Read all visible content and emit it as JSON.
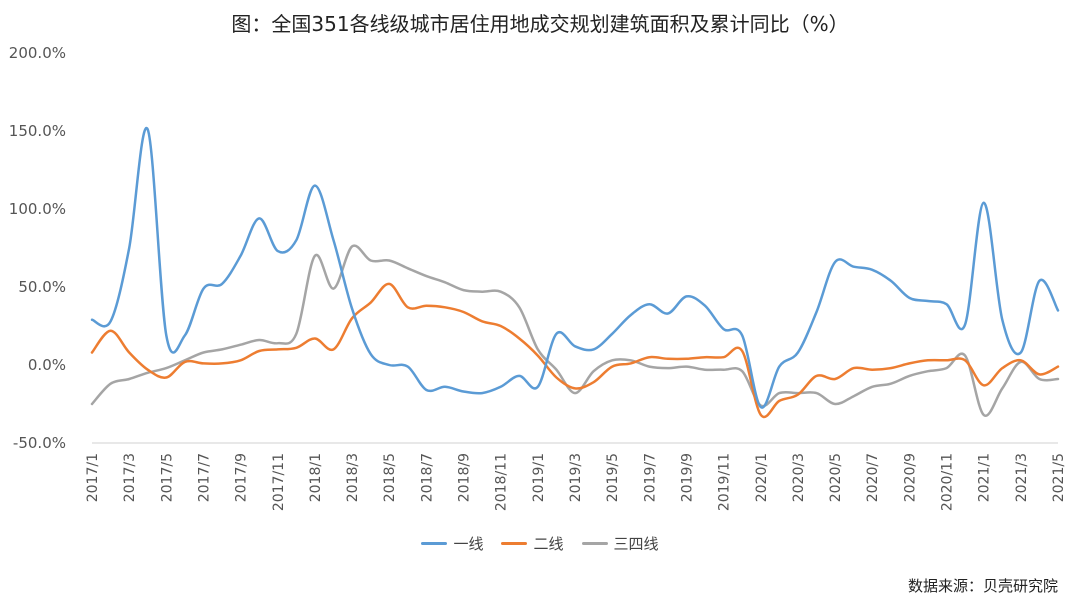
{
  "title": "图：全国351各线级城市居住用地成交规划建筑面积及累计同比（%）",
  "source": "数据来源：贝壳研究院",
  "chart_data": {
    "type": "line",
    "title": "图：全国351各线级城市居住用地成交规划建筑面积及累计同比（%）",
    "x": [
      "2017/1",
      "2017/2",
      "2017/3",
      "2017/4",
      "2017/5",
      "2017/6",
      "2017/7",
      "2017/8",
      "2017/9",
      "2017/10",
      "2017/11",
      "2017/12",
      "2018/1",
      "2018/2",
      "2018/3",
      "2018/4",
      "2018/5",
      "2018/6",
      "2018/7",
      "2018/8",
      "2018/9",
      "2018/10",
      "2018/11",
      "2018/12",
      "2019/1",
      "2019/2",
      "2019/3",
      "2019/4",
      "2019/5",
      "2019/6",
      "2019/7",
      "2019/8",
      "2019/9",
      "2019/10",
      "2019/11",
      "2019/12",
      "2020/1",
      "2020/2",
      "2020/3",
      "2020/4",
      "2020/5",
      "2020/6",
      "2020/7",
      "2020/8",
      "2020/9",
      "2020/10",
      "2020/11",
      "2020/12",
      "2021/1",
      "2021/2",
      "2021/3",
      "2021/4",
      "2021/5"
    ],
    "x_tick_labels": [
      "2017/1",
      "2017/3",
      "2017/5",
      "2017/7",
      "2017/9",
      "2017/11",
      "2018/1",
      "2018/3",
      "2018/5",
      "2018/7",
      "2018/9",
      "2018/11",
      "2019/1",
      "2019/3",
      "2019/5",
      "2019/7",
      "2019/9",
      "2019/11",
      "2020/1",
      "2020/3",
      "2020/5",
      "2020/7",
      "2020/9",
      "2020/11",
      "2021/1",
      "2021/3",
      "2021/5"
    ],
    "y_ticks": [
      -50,
      0,
      50,
      100,
      150,
      200
    ],
    "y_tick_labels": [
      "-50.0%",
      "0.0%",
      "50.0%",
      "100.0%",
      "150.0%",
      "200.0%"
    ],
    "ylim": [
      -50,
      200
    ],
    "xlabel": "",
    "ylabel": "",
    "legend_position": "bottom",
    "grid": false,
    "series": [
      {
        "name": "一线",
        "color": "#5b9bd5",
        "values": [
          29,
          28,
          75,
          151,
          19,
          19,
          49,
          52,
          70,
          94,
          73,
          80,
          115,
          80,
          36,
          7,
          0,
          -1,
          -16,
          -14,
          -17,
          -18,
          -14,
          -7,
          -14,
          20,
          12,
          10,
          20,
          32,
          39,
          33,
          44,
          38,
          23,
          19,
          -27,
          -1,
          8,
          34,
          66,
          63,
          61,
          54,
          43,
          41,
          39,
          26,
          104,
          29,
          8,
          54,
          35
        ]
      },
      {
        "name": "二线",
        "color": "#ed7d31",
        "values": [
          8,
          22,
          8,
          -3,
          -8,
          2,
          1,
          1,
          3,
          9,
          10,
          11,
          17,
          10,
          30,
          40,
          52,
          37,
          38,
          37,
          34,
          28,
          25,
          17,
          6,
          -8,
          -15,
          -11,
          -1,
          1,
          5,
          4,
          4,
          5,
          5,
          9,
          -32,
          -23,
          -19,
          -7,
          -9,
          -2,
          -3,
          -2,
          1,
          3,
          3,
          3,
          -13,
          -2,
          3,
          -6,
          -1
        ]
      },
      {
        "name": "三四线",
        "color": "#a5a5a5",
        "values": [
          -25,
          -12,
          -9,
          -5,
          -2,
          3,
          8,
          10,
          13,
          16,
          14,
          20,
          70,
          49,
          76,
          67,
          67,
          62,
          57,
          53,
          48,
          47,
          47,
          37,
          10,
          -3,
          -18,
          -4,
          3,
          3,
          -1,
          -2,
          -1,
          -3,
          -3,
          -4,
          -26,
          -18,
          -18,
          -18,
          -25,
          -20,
          -14,
          -12,
          -7,
          -4,
          -2,
          6,
          -32,
          -15,
          2,
          -9,
          -9
        ]
      }
    ]
  }
}
